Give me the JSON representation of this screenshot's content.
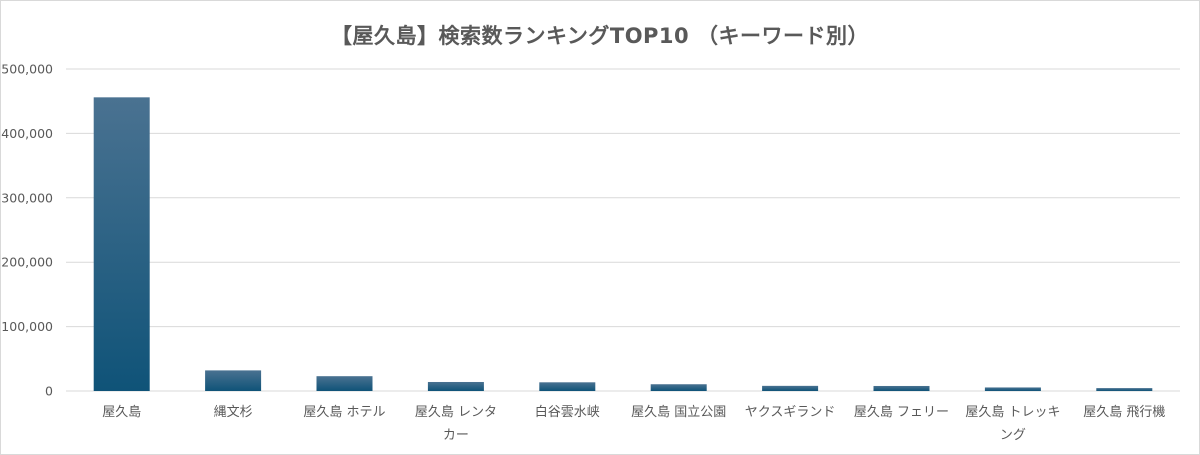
{
  "chart_data": {
    "type": "bar",
    "title": "【屋久島】検索数ランキングTOP10 （キーワード別）",
    "categories": [
      "屋久島",
      "縄文杉",
      "屋久島 ホテル",
      "屋久島 レンタカー",
      "白谷雲水峡",
      "屋久島 国立公園",
      "ヤクスギランド",
      "屋久島 フェリー",
      "屋久島 トレッキング",
      "屋久島 飛行機"
    ],
    "category_lines": [
      [
        "屋久島"
      ],
      [
        "縄文杉"
      ],
      [
        "屋久島 ホテル"
      ],
      [
        "屋久島 レンタ",
        "カー"
      ],
      [
        "白谷雲水峡"
      ],
      [
        "屋久島 国立公園"
      ],
      [
        "ヤクスギランド"
      ],
      [
        "屋久島 フェリー"
      ],
      [
        "屋久島 トレッキ",
        "ング"
      ],
      [
        "屋久島 飛行機"
      ]
    ],
    "values": [
      456000,
      32000,
      23000,
      14000,
      13500,
      10500,
      8000,
      7800,
      5500,
      4500
    ],
    "ylim": [
      0,
      500000
    ],
    "yticks": [
      0,
      100000,
      200000,
      300000,
      400000,
      500000
    ],
    "ytick_labels": [
      "0",
      "100,000",
      "200,000",
      "300,000",
      "400,000",
      "500,000"
    ],
    "xlabel": "",
    "ylabel": "",
    "grid": true,
    "bar_color_top": "#4a7291",
    "bar_color_bottom": "#0f5378",
    "grid_color": "#d9d9d9"
  }
}
